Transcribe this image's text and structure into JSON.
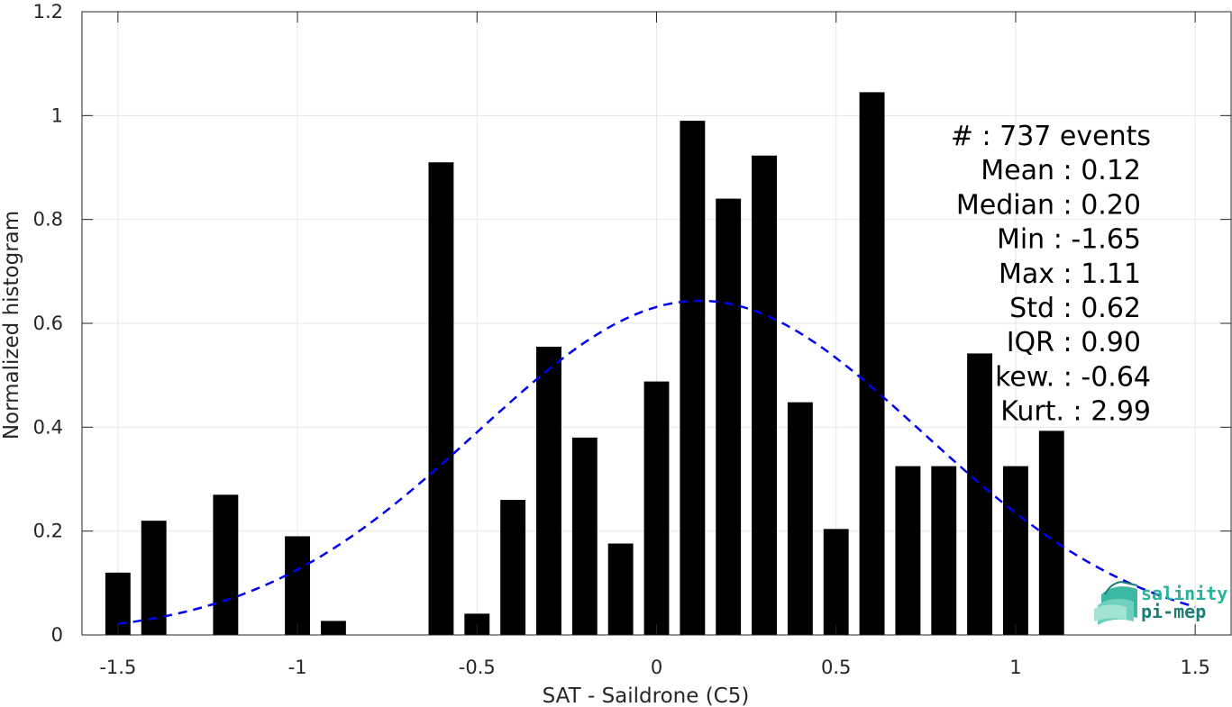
{
  "chart_data": {
    "type": "bar",
    "xlabel": "SAT - Saildrone (C5)",
    "ylabel": "Normalized histogram",
    "xlim": [
      -1.6,
      1.6
    ],
    "ylim": [
      0,
      1.2
    ],
    "xticks": [
      -1.5,
      -1,
      -0.5,
      0,
      0.5,
      1,
      1.5
    ],
    "xtick_labels": [
      "-1.5",
      "-1",
      "-0.5",
      "0",
      "0.5",
      "1",
      "1.5"
    ],
    "yticks": [
      0,
      0.2,
      0.4,
      0.6,
      0.8,
      1,
      1.2
    ],
    "ytick_labels": [
      "0",
      "0.2",
      "0.4",
      "0.6",
      "0.8",
      "1",
      "1.2"
    ],
    "grid": true,
    "bar_color": "#000000",
    "bars": [
      {
        "x": -1.5,
        "y": 0.12
      },
      {
        "x": -1.4,
        "y": 0.22
      },
      {
        "x": -1.3,
        "y": 0.0
      },
      {
        "x": -1.2,
        "y": 0.27
      },
      {
        "x": -1.1,
        "y": 0.0
      },
      {
        "x": -1.0,
        "y": 0.19
      },
      {
        "x": -0.9,
        "y": 0.027
      },
      {
        "x": -0.8,
        "y": 0.0
      },
      {
        "x": -0.7,
        "y": 0.0
      },
      {
        "x": -0.6,
        "y": 0.91
      },
      {
        "x": -0.5,
        "y": 0.041
      },
      {
        "x": -0.4,
        "y": 0.26
      },
      {
        "x": -0.3,
        "y": 0.555
      },
      {
        "x": -0.2,
        "y": 0.38
      },
      {
        "x": -0.1,
        "y": 0.176
      },
      {
        "x": 0.0,
        "y": 0.488
      },
      {
        "x": 0.1,
        "y": 0.99
      },
      {
        "x": 0.2,
        "y": 0.84
      },
      {
        "x": 0.3,
        "y": 0.923
      },
      {
        "x": 0.4,
        "y": 0.448
      },
      {
        "x": 0.5,
        "y": 0.204
      },
      {
        "x": 0.6,
        "y": 1.045
      },
      {
        "x": 0.7,
        "y": 0.325
      },
      {
        "x": 0.8,
        "y": 0.325
      },
      {
        "x": 0.9,
        "y": 0.542
      },
      {
        "x": 1.0,
        "y": 0.325
      },
      {
        "x": 1.1,
        "y": 0.393
      }
    ],
    "fit_curve": {
      "style": "dashed",
      "color": "#0000ee",
      "mean": 0.12,
      "std": 0.62,
      "x_range": [
        -1.5,
        1.5
      ]
    },
    "stats": [
      {
        "label": "#  : 737 events"
      },
      {
        "label": "Mean : 0.12"
      },
      {
        "label": "Median : 0.20"
      },
      {
        "label": "Min : -1.65"
      },
      {
        "label": "Max : 1.11"
      },
      {
        "label": "Std : 0.62"
      },
      {
        "label": "IQR : 0.90"
      },
      {
        "label": "kew. : -0.64"
      },
      {
        "label": "Kurt. : 2.99"
      }
    ]
  },
  "logo": {
    "line1": "salinity",
    "line2": "pi-mep",
    "color1": "#27b39a",
    "color2": "#1d7f73"
  }
}
